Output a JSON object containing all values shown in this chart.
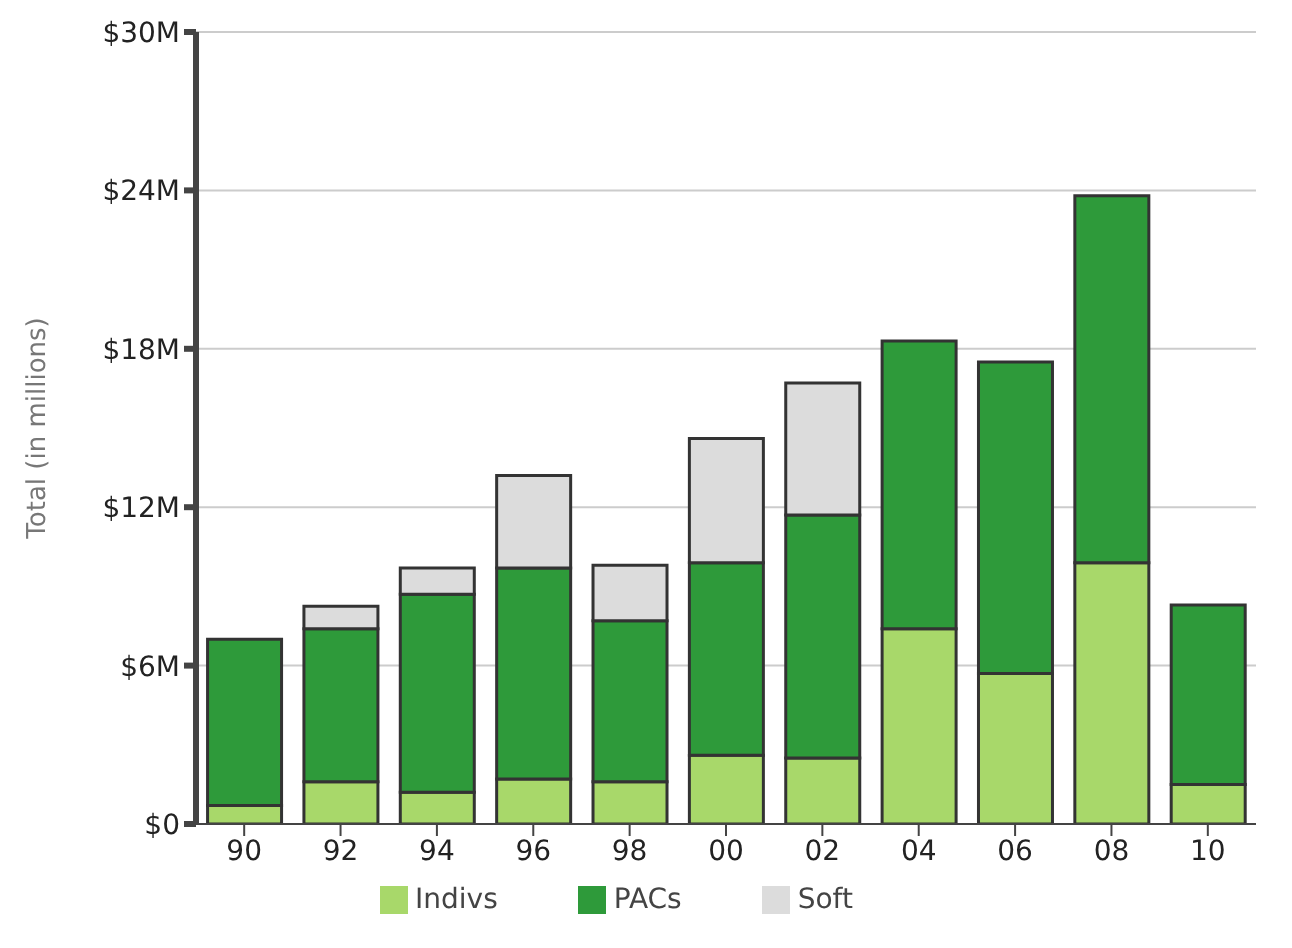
{
  "chart_data": {
    "type": "bar",
    "stacked": true,
    "ylabel": "Total (in millions)",
    "categories": [
      "90",
      "92",
      "94",
      "96",
      "98",
      "00",
      "02",
      "04",
      "06",
      "08",
      "10"
    ],
    "series": [
      {
        "name": "Indivs",
        "color": "#a8d86a",
        "values": [
          0.7,
          1.6,
          1.2,
          1.7,
          1.6,
          2.6,
          2.5,
          7.4,
          5.7,
          9.9,
          1.5
        ]
      },
      {
        "name": "PACs",
        "color": "#2e9a3a",
        "values": [
          6.3,
          5.8,
          7.5,
          8.0,
          6.1,
          7.3,
          9.2,
          10.9,
          11.8,
          13.9,
          6.8
        ]
      },
      {
        "name": "Soft",
        "color": "#dcdcdc",
        "values": [
          0,
          0.85,
          1.0,
          3.5,
          2.1,
          4.7,
          5.0,
          0,
          0,
          0,
          0
        ]
      }
    ],
    "ylim": [
      0,
      30
    ],
    "yticks": [
      {
        "value": 0,
        "label": "$0"
      },
      {
        "value": 6,
        "label": "$6M"
      },
      {
        "value": 12,
        "label": "$12M"
      },
      {
        "value": 18,
        "label": "$18M"
      },
      {
        "value": 24,
        "label": "$24M"
      },
      {
        "value": 30,
        "label": "$30M"
      }
    ],
    "grid": "y",
    "legend": "bottom"
  }
}
